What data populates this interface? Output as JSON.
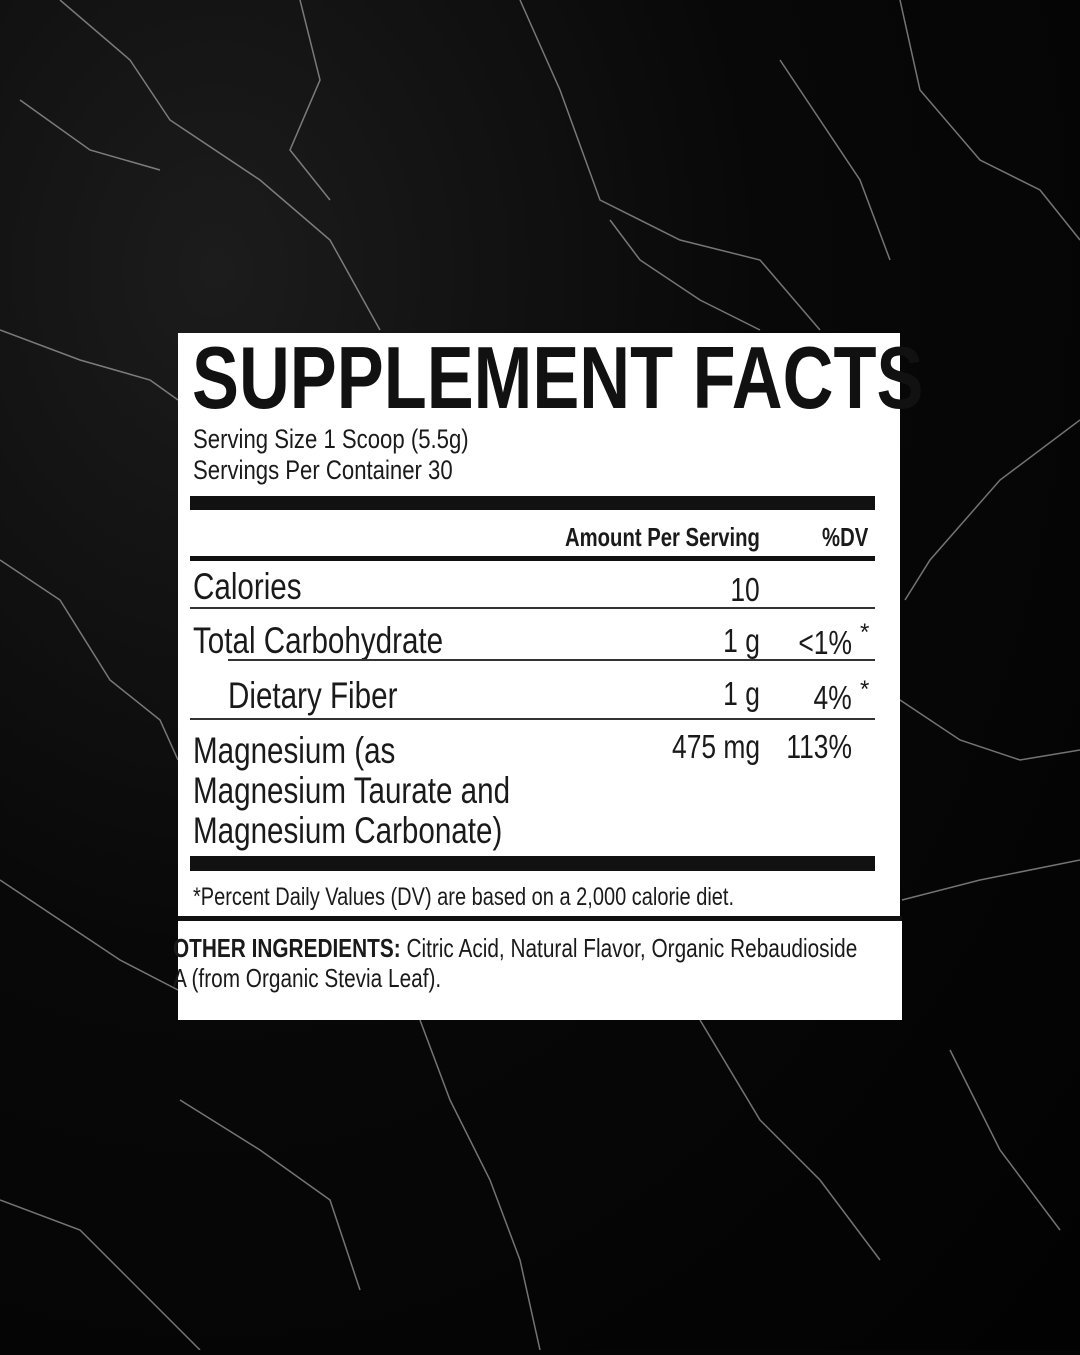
{
  "label": {
    "title": "SUPPLEMENT FACTS",
    "serving_size": "Serving Size 1 Scoop (5.5g)",
    "servings_per_container": "Servings Per Container 30",
    "header": {
      "amount": "Amount Per Serving",
      "dv": "%DV"
    },
    "rows": [
      {
        "name": "Calories",
        "amount": "10",
        "dv": ""
      },
      {
        "name": "Total Carbohydrate",
        "amount": "1 g",
        "dv": "<1%",
        "mark": "*"
      },
      {
        "name": "Dietary Fiber",
        "amount": "1 g",
        "dv": "4%",
        "mark": "*"
      },
      {
        "name_lines": [
          "Magnesium (as",
          "Magnesium Taurate and",
          "Magnesium Carbonate)"
        ],
        "amount": "475 mg",
        "dv": "113%"
      }
    ],
    "footnote": "*Percent Daily Values (DV) are based on a 2,000 calorie diet."
  },
  "other_ingredients": {
    "heading": "OTHER INGREDIENTS:",
    "line1": " Citric Acid, Natural Flavor, Organic Rebaudioside",
    "line2": "A (from Organic Stevia Leaf)."
  }
}
